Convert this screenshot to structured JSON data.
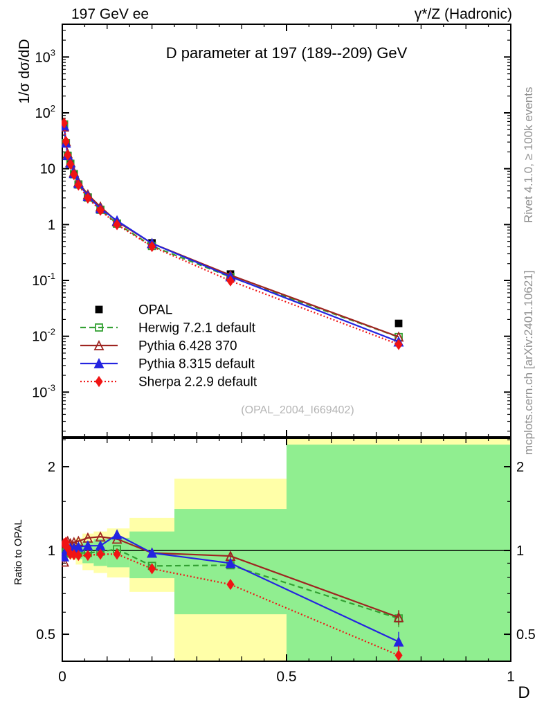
{
  "header": {
    "left": "197 GeV ee",
    "right": "γ*/Z (Hadronic)"
  },
  "title": "D parameter at 197 (189--209) GeV",
  "watermark": "(OPAL_2004_I669402)",
  "side_notes": {
    "rivet": "Rivet 4.1.0, ≥ 100k events",
    "mcplots": "mcplots.cern.ch [arXiv:2401.10621]"
  },
  "axis_labels": {
    "main_y": "1/σ  dσ/dD",
    "ratio_y": "Ratio to OPAL",
    "x": "D"
  },
  "colors": {
    "data": "#000000",
    "herwig": "#33a033",
    "pythia6": "#9e2420",
    "pythia8": "#2424e0",
    "sherpa": "#f01414",
    "band_yellow": "#ffffa8",
    "band_green": "#90ee90",
    "gray_text": "#8f8f8f",
    "watermark": "#b4b4b4"
  },
  "legend": [
    {
      "id": "data",
      "label": "OPAL"
    },
    {
      "id": "herwig",
      "label": "Herwig 7.2.1 default"
    },
    {
      "id": "pythia6",
      "label": "Pythia 6.428 370"
    },
    {
      "id": "pythia8",
      "label": "Pythia 8.315 default"
    },
    {
      "id": "sherpa",
      "label": "Sherpa 2.2.9 default"
    }
  ],
  "chart_data": {
    "type": "line",
    "title": "D parameter at 197 (189--209) GeV",
    "xlabel": "D",
    "ylabel": "1/σ dσ/dD",
    "ratio_label": "Ratio to OPAL",
    "x": [
      0.004,
      0.008,
      0.012,
      0.018,
      0.026,
      0.036,
      0.057,
      0.085,
      0.122,
      0.2,
      0.375,
      0.75
    ],
    "data_series": {
      "name": "OPAL",
      "values": [
        62,
        29,
        17.3,
        12.4,
        8.1,
        5.3,
        3.1,
        1.86,
        1.03,
        0.47,
        0.13,
        0.017
      ],
      "errors": [
        3,
        1.5,
        0.9,
        0.6,
        0.4,
        0.25,
        0.15,
        0.09,
        0.05,
        0.022,
        0.007,
        0.0015
      ]
    },
    "mc_series": [
      {
        "id": "herwig",
        "name": "Herwig 7.2.1 default",
        "style": "dashed",
        "marker": "square-open",
        "ratios": [
          1.0,
          0.985,
          0.975,
          0.99,
          0.98,
          0.98,
          0.98,
          0.99,
          1.01,
          0.88,
          0.885,
          0.57
        ],
        "ratio_errors": [
          0.015,
          0.012,
          0.01,
          0.008,
          0.008,
          0.008,
          0.008,
          0.008,
          0.01,
          0.012,
          0.02,
          0.04
        ]
      },
      {
        "id": "pythia6",
        "name": "Pythia 6.428 370",
        "style": "solid",
        "marker": "triangle-open",
        "ratios": [
          0.91,
          1.06,
          1.08,
          1.06,
          1.07,
          1.08,
          1.11,
          1.12,
          1.1,
          0.98,
          0.955,
          0.575
        ],
        "ratio_errors": [
          0.015,
          0.012,
          0.01,
          0.008,
          0.008,
          0.008,
          0.008,
          0.008,
          0.01,
          0.012,
          0.02,
          0.035
        ]
      },
      {
        "id": "pythia8",
        "name": "Pythia 8.315 default",
        "style": "solid",
        "marker": "triangle-filled",
        "ratios": [
          0.95,
          1.0,
          1.01,
          1.02,
          1.02,
          1.03,
          1.04,
          1.04,
          1.14,
          0.98,
          0.9,
          0.47
        ],
        "ratio_errors": [
          0.015,
          0.012,
          0.01,
          0.008,
          0.008,
          0.008,
          0.008,
          0.008,
          0.01,
          0.012,
          0.02,
          0.04
        ]
      },
      {
        "id": "sherpa",
        "name": "Sherpa 2.2.9 default",
        "style": "dotted",
        "marker": "diamond-filled",
        "ratios": [
          1.06,
          1.07,
          1.02,
          0.97,
          0.965,
          0.96,
          0.96,
          0.97,
          0.97,
          0.86,
          0.755,
          0.42
        ],
        "ratio_errors": [
          0.015,
          0.012,
          0.01,
          0.008,
          0.008,
          0.008,
          0.008,
          0.008,
          0.01,
          0.012,
          0.02,
          0.035
        ]
      }
    ],
    "ratio_bands": {
      "edges": [
        0,
        0.006,
        0.01,
        0.015,
        0.022,
        0.03,
        0.045,
        0.07,
        0.1,
        0.15,
        0.25,
        0.5,
        1.0
      ],
      "yellow": [
        [
          0.955,
          1.045
        ],
        [
          0.95,
          1.05
        ],
        [
          0.94,
          1.06
        ],
        [
          0.93,
          1.07
        ],
        [
          0.925,
          1.075
        ],
        [
          0.89,
          1.11
        ],
        [
          0.85,
          1.15
        ],
        [
          0.83,
          1.17
        ],
        [
          0.8,
          1.2
        ],
        [
          0.71,
          1.31
        ],
        [
          0.4,
          1.81
        ],
        [
          0.38,
          2.53
        ]
      ],
      "green": [
        [
          0.975,
          1.025
        ],
        [
          0.97,
          1.03
        ],
        [
          0.96,
          1.035
        ],
        [
          0.955,
          1.04
        ],
        [
          0.95,
          1.045
        ],
        [
          0.93,
          1.06
        ],
        [
          0.9,
          1.08
        ],
        [
          0.88,
          1.1
        ],
        [
          0.87,
          1.11
        ],
        [
          0.795,
          1.17
        ],
        [
          0.59,
          1.41
        ],
        [
          0.38,
          2.4
        ]
      ]
    },
    "main_yaxis": {
      "scale": "log",
      "min": 0.000158,
      "max": 3860,
      "tick_labels": [
        {
          "v": 1000,
          "m": "10",
          "e": "3"
        },
        {
          "v": 100,
          "m": "10",
          "e": "2"
        },
        {
          "v": 10,
          "m": "10"
        },
        {
          "v": 1,
          "m": "1"
        },
        {
          "v": 0.1,
          "m": "10",
          "e": "-1"
        },
        {
          "v": 0.01,
          "m": "10",
          "e": "-2"
        },
        {
          "v": 0.001,
          "m": "10",
          "e": "-3"
        }
      ]
    },
    "ratio_yaxis": {
      "scale": "log",
      "min": 0.4,
      "max": 2.53,
      "major": [
        {
          "v": 0.5,
          "label": "0.5"
        },
        {
          "v": 1,
          "label": "1"
        },
        {
          "v": 2,
          "label": "2"
        }
      ],
      "minor": [
        0.4,
        0.6,
        0.7,
        0.8,
        0.9,
        1.5,
        2.5
      ]
    },
    "xaxis": {
      "min": 0,
      "max": 1,
      "major": [
        {
          "v": 0,
          "label": "0"
        },
        {
          "v": 0.5,
          "label": "0.5"
        },
        {
          "v": 1,
          "label": "1"
        }
      ],
      "medium_step": 0.1,
      "minor_step": 0.05
    }
  }
}
